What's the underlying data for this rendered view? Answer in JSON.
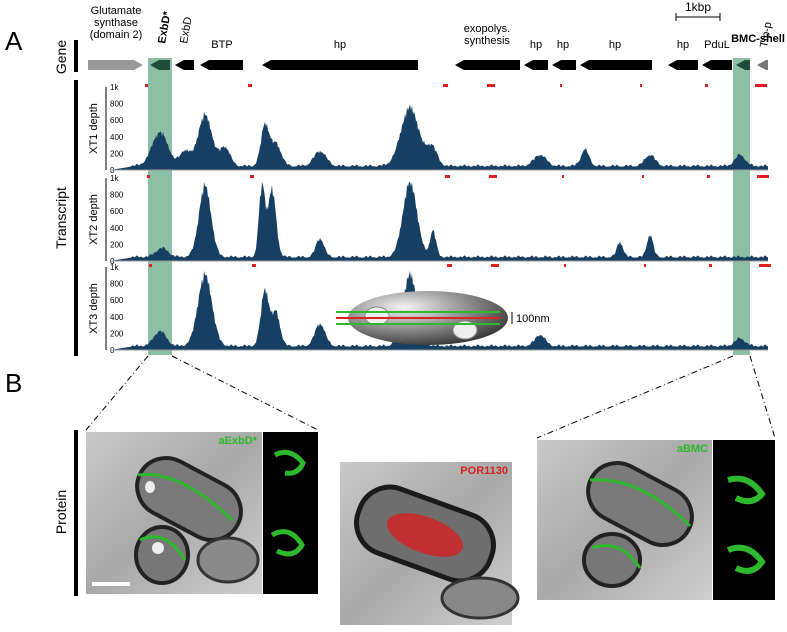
{
  "panels": [
    "A",
    "B"
  ],
  "row_labels": {
    "gene": "Gene",
    "transcript": "Transcript",
    "protein": "Protein"
  },
  "scale_bar": "1kbp",
  "genes": [
    {
      "lines": [
        "Glutamate",
        "synthase",
        "(domain 2)"
      ]
    },
    {
      "lines": [
        "ExbD*"
      ]
    },
    {
      "lines": [
        "ExbD"
      ]
    },
    {
      "lines": [
        "BTP"
      ]
    },
    {
      "lines": [
        "hp"
      ]
    },
    {
      "lines": [
        "exopolys.",
        "synthesis"
      ]
    },
    {
      "lines": [
        "hp"
      ]
    },
    {
      "lines": [
        "hp"
      ]
    },
    {
      "lines": [
        "hp"
      ]
    },
    {
      "lines": [
        "hp"
      ]
    },
    {
      "lines": [
        "PduL"
      ]
    },
    {
      "lines": [
        "BMC-shell"
      ]
    },
    {
      "lines": [
        "Tfp-p"
      ]
    }
  ],
  "tracks": [
    "XT1 depth",
    "XT2 depth",
    "XT3 depth"
  ],
  "depth_ticks": [
    "1k",
    "800",
    "600",
    "400",
    "200",
    "0"
  ],
  "schematic_scale": "100nm",
  "images": [
    "aExbD*",
    "POR1130",
    "aBMC"
  ]
}
